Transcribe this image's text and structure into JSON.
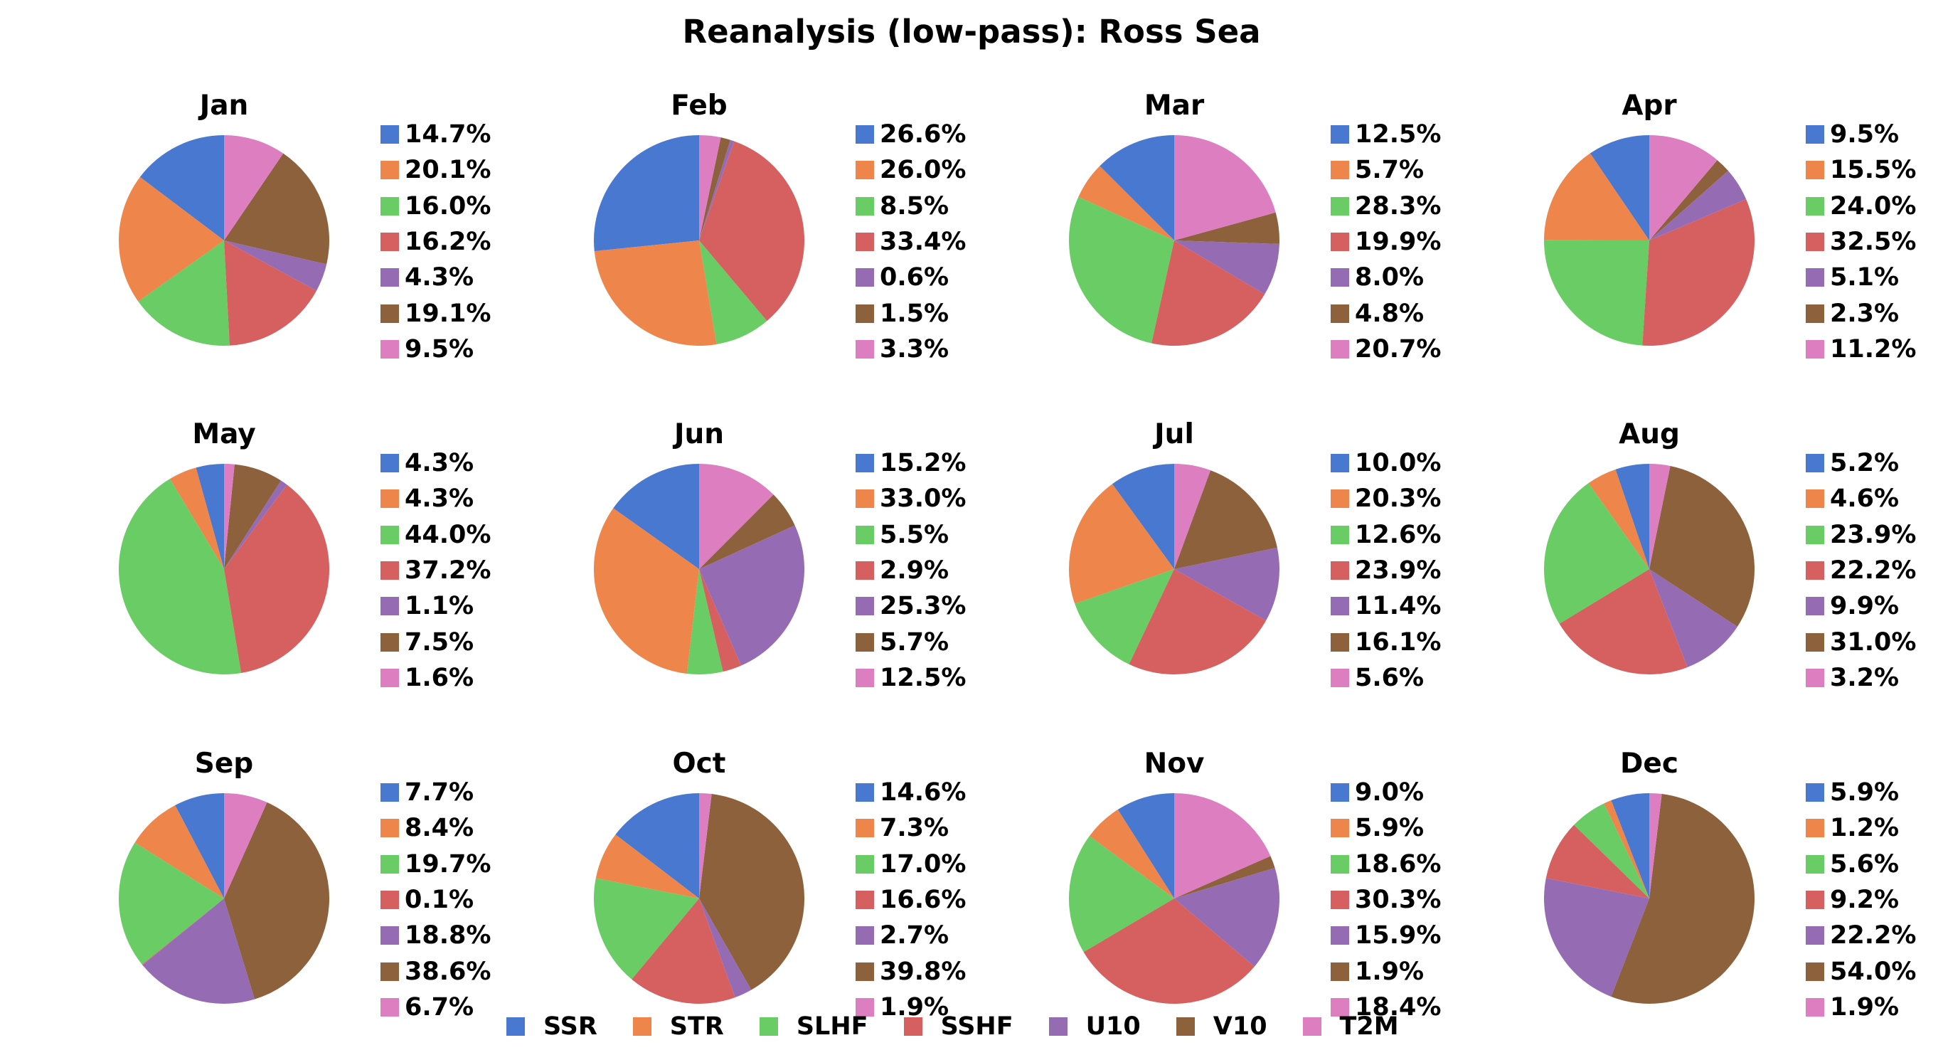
{
  "chart_data": {
    "type": "pie",
    "title": "Reanalysis (low-pass): Ross Sea",
    "series": [
      {
        "name": "SSR",
        "color": "#4878d0"
      },
      {
        "name": "STR",
        "color": "#ee854a"
      },
      {
        "name": "SLHF",
        "color": "#6acc64"
      },
      {
        "name": "SSHF",
        "color": "#d65f5f"
      },
      {
        "name": "U10",
        "color": "#956cb4"
      },
      {
        "name": "V10",
        "color": "#8c613c"
      },
      {
        "name": "T2M",
        "color": "#dc7ec0"
      }
    ],
    "legend_placement": "bottom-center",
    "panels": [
      {
        "title": "Jan",
        "values": [
          14.7,
          20.1,
          16.0,
          16.2,
          4.3,
          19.1,
          9.5
        ],
        "labels": [
          "14.7%",
          "20.1%",
          "16.0%",
          "16.2%",
          "4.3%",
          "19.1%",
          "9.5%"
        ]
      },
      {
        "title": "Feb",
        "values": [
          26.6,
          26.0,
          8.5,
          33.4,
          0.6,
          1.5,
          3.3
        ],
        "labels": [
          "26.6%",
          "26.0%",
          "8.5%",
          "33.4%",
          "0.6%",
          "1.5%",
          "3.3%"
        ]
      },
      {
        "title": "Mar",
        "values": [
          12.5,
          5.7,
          28.3,
          19.9,
          8.0,
          4.8,
          20.7
        ],
        "labels": [
          "12.5%",
          "5.7%",
          "28.3%",
          "19.9%",
          "8.0%",
          "4.8%",
          "20.7%"
        ]
      },
      {
        "title": "Apr",
        "values": [
          9.5,
          15.5,
          24.0,
          32.5,
          5.1,
          2.3,
          11.2
        ],
        "labels": [
          "9.5%",
          "15.5%",
          "24.0%",
          "32.5%",
          "5.1%",
          "2.3%",
          "11.2%"
        ]
      },
      {
        "title": "May",
        "values": [
          4.3,
          4.3,
          44.0,
          37.2,
          1.1,
          7.5,
          1.6
        ],
        "labels": [
          "4.3%",
          "4.3%",
          "44.0%",
          "37.2%",
          "1.1%",
          "7.5%",
          "1.6%"
        ]
      },
      {
        "title": "Jun",
        "values": [
          15.2,
          33.0,
          5.5,
          2.9,
          25.3,
          5.7,
          12.5
        ],
        "labels": [
          "15.2%",
          "33.0%",
          "5.5%",
          "2.9%",
          "25.3%",
          "5.7%",
          "12.5%"
        ]
      },
      {
        "title": "Jul",
        "values": [
          10.0,
          20.3,
          12.6,
          23.9,
          11.4,
          16.1,
          5.6
        ],
        "labels": [
          "10.0%",
          "20.3%",
          "12.6%",
          "23.9%",
          "11.4%",
          "16.1%",
          "5.6%"
        ]
      },
      {
        "title": "Aug",
        "values": [
          5.2,
          4.6,
          23.9,
          22.2,
          9.9,
          31.0,
          3.2
        ],
        "labels": [
          "5.2%",
          "4.6%",
          "23.9%",
          "22.2%",
          "9.9%",
          "31.0%",
          "3.2%"
        ]
      },
      {
        "title": "Sep",
        "values": [
          7.7,
          8.4,
          19.7,
          0.1,
          18.8,
          38.6,
          6.7
        ],
        "labels": [
          "7.7%",
          "8.4%",
          "19.7%",
          "0.1%",
          "18.8%",
          "38.6%",
          "6.7%"
        ]
      },
      {
        "title": "Oct",
        "values": [
          14.6,
          7.3,
          17.0,
          16.6,
          2.7,
          39.8,
          1.9
        ],
        "labels": [
          "14.6%",
          "7.3%",
          "17.0%",
          "16.6%",
          "2.7%",
          "39.8%",
          "1.9%"
        ]
      },
      {
        "title": "Nov",
        "values": [
          9.0,
          5.9,
          18.6,
          30.3,
          15.9,
          1.9,
          18.4
        ],
        "labels": [
          "9.0%",
          "5.9%",
          "18.6%",
          "30.3%",
          "15.9%",
          "1.9%",
          "18.4%"
        ]
      },
      {
        "title": "Dec",
        "values": [
          5.9,
          1.2,
          5.6,
          9.2,
          22.2,
          54.0,
          1.9
        ],
        "labels": [
          "5.9%",
          "1.2%",
          "5.6%",
          "9.2%",
          "22.2%",
          "54.0%",
          "1.9%"
        ]
      }
    ]
  }
}
